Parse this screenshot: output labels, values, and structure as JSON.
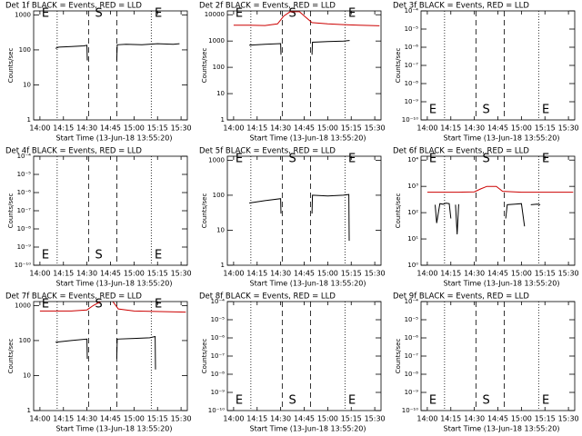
{
  "chart_data": [
    {
      "type": "line",
      "title": "Det 1f BLACK = Events, RED = LLD",
      "xlabel": "Start Time (13-Jun-18 13:55:20)",
      "ylabel": "Counts/sec",
      "log_y": true,
      "labels_at": "top",
      "xlim": [
        -4,
        94
      ],
      "xticks": [
        {
          "value": 0,
          "label": "14:00"
        },
        {
          "value": 15,
          "label": "14:15"
        },
        {
          "value": 30,
          "label": "14:30"
        },
        {
          "value": 45,
          "label": "14:45"
        },
        {
          "value": 60,
          "label": "15:00"
        },
        {
          "value": 75,
          "label": "15:15"
        },
        {
          "value": 90,
          "label": "15:30"
        }
      ],
      "ylim": [
        1,
        1300
      ],
      "yticks": [
        1,
        10,
        100,
        1000
      ],
      "dotted_x": [
        11,
        71
      ],
      "dashed_x": [
        31,
        49
      ],
      "event_labels": [
        {
          "text": "E",
          "x": 0
        },
        {
          "text": "S",
          "x": 34
        },
        {
          "text": "E",
          "x": 72
        }
      ],
      "series": [
        {
          "color": "#000000",
          "x": [
            10,
            12,
            20,
            28,
            30,
            30.2,
            null,
            49,
            49.3,
            55,
            65,
            75,
            85,
            89
          ],
          "values": [
            110,
            120,
            125,
            130,
            135,
            50,
            null,
            50,
            140,
            145,
            140,
            150,
            145,
            150
          ]
        }
      ]
    },
    {
      "type": "line",
      "title": "Det 2f BLACK = Events, RED = LLD",
      "xlabel": "Start Time (13-Jun-18 13:55:20)",
      "ylabel": "Counts/sec",
      "log_y": true,
      "labels_at": "top",
      "xlim": [
        -4,
        94
      ],
      "xticks": [
        {
          "value": 0,
          "label": "14:00"
        },
        {
          "value": 15,
          "label": "14:15"
        },
        {
          "value": 30,
          "label": "14:30"
        },
        {
          "value": 45,
          "label": "14:45"
        },
        {
          "value": 60,
          "label": "15:00"
        },
        {
          "value": 75,
          "label": "15:15"
        },
        {
          "value": 90,
          "label": "15:30"
        }
      ],
      "ylim": [
        1,
        14000
      ],
      "yticks": [
        1,
        10,
        100,
        1000,
        10000
      ],
      "dotted_x": [
        11,
        71
      ],
      "dashed_x": [
        31,
        49
      ],
      "event_labels": [
        {
          "text": "E",
          "x": 0
        },
        {
          "text": "S",
          "x": 34
        },
        {
          "text": "E",
          "x": 72
        }
      ],
      "series": [
        {
          "color": "#cc0000",
          "x": [
            0,
            10,
            20,
            28,
            32,
            36,
            42,
            46,
            50,
            60,
            70,
            80,
            93
          ],
          "values": [
            4000,
            4000,
            3900,
            4500,
            9000,
            13000,
            13000,
            8000,
            5000,
            4500,
            4200,
            4000,
            3800
          ]
        },
        {
          "color": "#000000",
          "x": [
            10,
            20,
            30,
            30.2,
            null,
            50,
            50.3,
            60,
            70,
            74
          ],
          "values": [
            700,
            750,
            800,
            300,
            null,
            300,
            900,
            950,
            1000,
            1050
          ]
        }
      ]
    },
    {
      "type": "line",
      "title": "Det 3f BLACK = Events, RED = LLD",
      "xlabel": "Start Time (13-Jun-18 13:55:20)",
      "ylabel": "Counts/sec",
      "log_y": true,
      "labels_at": "bottom",
      "xlim": [
        -4,
        94
      ],
      "xticks": [
        {
          "value": 0,
          "label": "14:00"
        },
        {
          "value": 15,
          "label": "14:15"
        },
        {
          "value": 30,
          "label": "14:30"
        },
        {
          "value": 45,
          "label": "14:45"
        },
        {
          "value": 60,
          "label": "15:00"
        },
        {
          "value": 75,
          "label": "15:15"
        },
        {
          "value": 90,
          "label": "15:30"
        }
      ],
      "ylim": [
        1e-10,
        0.0001
      ],
      "yticks": [
        {
          "value": 1e-10,
          "label": "10⁻¹⁰"
        },
        {
          "value": 1e-09,
          "label": "10⁻⁹"
        },
        {
          "value": 1e-08,
          "label": "10⁻⁸"
        },
        {
          "value": 1e-07,
          "label": "10⁻⁷"
        },
        {
          "value": 1e-06,
          "label": "10⁻⁶"
        },
        {
          "value": 1e-05,
          "label": "10⁻⁵"
        },
        {
          "value": 0.0001,
          "label": "10⁻⁴"
        }
      ],
      "dotted_x": [
        11,
        71
      ],
      "dashed_x": [
        31,
        49
      ],
      "event_labels": [
        {
          "text": "E",
          "x": 0
        },
        {
          "text": "S",
          "x": 34
        },
        {
          "text": "E",
          "x": 72
        }
      ],
      "series": []
    },
    {
      "type": "line",
      "title": "Det 4f BLACK = Events, RED = LLD",
      "xlabel": "Start Time (13-Jun-18 13:55:20)",
      "ylabel": "Counts/sec",
      "log_y": true,
      "labels_at": "bottom",
      "xlim": [
        -4,
        94
      ],
      "xticks": [
        {
          "value": 0,
          "label": "14:00"
        },
        {
          "value": 15,
          "label": "14:15"
        },
        {
          "value": 30,
          "label": "14:30"
        },
        {
          "value": 45,
          "label": "14:45"
        },
        {
          "value": 60,
          "label": "15:00"
        },
        {
          "value": 75,
          "label": "15:15"
        },
        {
          "value": 90,
          "label": "15:30"
        }
      ],
      "ylim": [
        1e-10,
        0.0001
      ],
      "yticks": [
        {
          "value": 1e-10,
          "label": "10⁻¹⁰"
        },
        {
          "value": 1e-09,
          "label": "10⁻⁹"
        },
        {
          "value": 1e-08,
          "label": "10⁻⁸"
        },
        {
          "value": 1e-07,
          "label": "10⁻⁷"
        },
        {
          "value": 1e-06,
          "label": "10⁻⁶"
        },
        {
          "value": 1e-05,
          "label": "10⁻⁵"
        },
        {
          "value": 0.0001,
          "label": "10⁻⁴"
        }
      ],
      "dotted_x": [
        11,
        71
      ],
      "dashed_x": [
        31,
        49
      ],
      "event_labels": [
        {
          "text": "E",
          "x": 0
        },
        {
          "text": "S",
          "x": 34
        },
        {
          "text": "E",
          "x": 72
        }
      ],
      "series": []
    },
    {
      "type": "line",
      "title": "Det 5f BLACK = Events, RED = LLD",
      "xlabel": "Start Time (13-Jun-18 13:55:20)",
      "ylabel": "Counts/sec",
      "log_y": true,
      "labels_at": "top",
      "xlim": [
        -4,
        94
      ],
      "xticks": [
        {
          "value": 0,
          "label": "14:00"
        },
        {
          "value": 15,
          "label": "14:15"
        },
        {
          "value": 30,
          "label": "14:30"
        },
        {
          "value": 45,
          "label": "14:45"
        },
        {
          "value": 60,
          "label": "15:00"
        },
        {
          "value": 75,
          "label": "15:15"
        },
        {
          "value": 90,
          "label": "15:30"
        }
      ],
      "ylim": [
        1,
        1300
      ],
      "yticks": [
        1,
        10,
        100,
        1000
      ],
      "dotted_x": [
        11,
        71
      ],
      "dashed_x": [
        31,
        49
      ],
      "event_labels": [
        {
          "text": "E",
          "x": 0
        },
        {
          "text": "S",
          "x": 34
        },
        {
          "text": "E",
          "x": 72
        }
      ],
      "series": [
        {
          "color": "#000000",
          "x": [
            10,
            20,
            30,
            30.2,
            null,
            50,
            50.3,
            60,
            70,
            73.5,
            73.7
          ],
          "values": [
            60,
            70,
            80,
            30,
            null,
            30,
            100,
            95,
            100,
            105,
            5
          ]
        }
      ]
    },
    {
      "type": "line",
      "title": "Det 6f BLACK = Events, RED = LLD",
      "xlabel": "Start Time (13-Jun-18 13:55:20)",
      "ylabel": "Counts/sec",
      "log_y": true,
      "labels_at": "top",
      "xlim": [
        -4,
        94
      ],
      "xticks": [
        {
          "value": 0,
          "label": "14:00"
        },
        {
          "value": 15,
          "label": "14:15"
        },
        {
          "value": 30,
          "label": "14:30"
        },
        {
          "value": 45,
          "label": "14:45"
        },
        {
          "value": 60,
          "label": "15:00"
        },
        {
          "value": 75,
          "label": "15:15"
        },
        {
          "value": 90,
          "label": "15:30"
        }
      ],
      "ylim": [
        1,
        14000
      ],
      "yticks": [
        {
          "value": 1,
          "label": "10⁰"
        },
        {
          "value": 10,
          "label": "10¹"
        },
        {
          "value": 100,
          "label": "10²"
        },
        {
          "value": 1000,
          "label": "10³"
        },
        {
          "value": 10000,
          "label": "10⁴"
        }
      ],
      "dotted_x": [
        11,
        71
      ],
      "dashed_x": [
        31,
        49
      ],
      "event_labels": [
        {
          "text": "E",
          "x": 0
        },
        {
          "text": "S",
          "x": 34
        },
        {
          "text": "E",
          "x": 72
        }
      ],
      "series": [
        {
          "color": "#cc0000",
          "x": [
            0,
            20,
            30,
            34,
            38,
            44,
            48,
            60,
            93
          ],
          "values": [
            600,
            600,
            620,
            800,
            1000,
            1000,
            650,
            600,
            600
          ]
        },
        {
          "color": "#000000",
          "x": [
            5,
            6,
            8,
            10,
            12,
            14,
            15,
            null,
            18,
            19,
            20,
            null,
            50,
            51,
            56,
            60,
            62,
            null,
            66,
            70,
            72
          ],
          "values": [
            200,
            40,
            220,
            210,
            230,
            220,
            60,
            null,
            200,
            15,
            210,
            null,
            60,
            200,
            210,
            220,
            30,
            null,
            200,
            210,
            200
          ]
        }
      ]
    },
    {
      "type": "line",
      "title": "Det 7f BLACK = Events, RED = LLD",
      "xlabel": "Start Time (13-Jun-18 13:55:20)",
      "ylabel": "Counts/sec",
      "log_y": true,
      "labels_at": "top",
      "xlim": [
        -4,
        94
      ],
      "xticks": [
        {
          "value": 0,
          "label": "14:00"
        },
        {
          "value": 15,
          "label": "14:15"
        },
        {
          "value": 30,
          "label": "14:30"
        },
        {
          "value": 45,
          "label": "14:45"
        },
        {
          "value": 60,
          "label": "15:00"
        },
        {
          "value": 75,
          "label": "15:15"
        },
        {
          "value": 90,
          "label": "15:30"
        }
      ],
      "ylim": [
        1,
        1300
      ],
      "yticks": [
        1,
        10,
        100,
        1000
      ],
      "dotted_x": [
        11,
        71
      ],
      "dashed_x": [
        31,
        49
      ],
      "event_labels": [
        {
          "text": "E",
          "x": 0
        },
        {
          "text": "S",
          "x": 34
        },
        {
          "text": "E",
          "x": 72
        }
      ],
      "series": [
        {
          "color": "#cc0000",
          "x": [
            0,
            20,
            30,
            34,
            40,
            46,
            50,
            60,
            93
          ],
          "values": [
            700,
            700,
            750,
            1000,
            1400,
            1400,
            800,
            700,
            650
          ]
        },
        {
          "color": "#000000",
          "x": [
            10,
            20,
            30,
            30.2,
            null,
            49,
            49.3,
            60,
            70,
            73.5,
            73.7
          ],
          "values": [
            90,
            100,
            110,
            30,
            null,
            30,
            110,
            115,
            120,
            130,
            15
          ]
        }
      ]
    },
    {
      "type": "line",
      "title": "Det 8f BLACK = Events, RED = LLD",
      "xlabel": "Start Time (13-Jun-18 13:55:20)",
      "ylabel": "Counts/sec",
      "log_y": true,
      "labels_at": "bottom",
      "xlim": [
        -4,
        94
      ],
      "xticks": [
        {
          "value": 0,
          "label": "14:00"
        },
        {
          "value": 15,
          "label": "14:15"
        },
        {
          "value": 30,
          "label": "14:30"
        },
        {
          "value": 45,
          "label": "14:45"
        },
        {
          "value": 60,
          "label": "15:00"
        },
        {
          "value": 75,
          "label": "15:15"
        },
        {
          "value": 90,
          "label": "15:30"
        }
      ],
      "ylim": [
        1e-10,
        0.0001
      ],
      "yticks": [
        {
          "value": 1e-10,
          "label": "10⁻¹⁰"
        },
        {
          "value": 1e-09,
          "label": "10⁻⁹"
        },
        {
          "value": 1e-08,
          "label": "10⁻⁸"
        },
        {
          "value": 1e-07,
          "label": "10⁻⁷"
        },
        {
          "value": 1e-06,
          "label": "10⁻⁶"
        },
        {
          "value": 1e-05,
          "label": "10⁻⁵"
        },
        {
          "value": 0.0001,
          "label": "10⁻⁴"
        }
      ],
      "dotted_x": [
        11,
        71
      ],
      "dashed_x": [
        31,
        49
      ],
      "event_labels": [
        {
          "text": "E",
          "x": 0
        },
        {
          "text": "S",
          "x": 34
        },
        {
          "text": "E",
          "x": 72
        }
      ],
      "series": []
    },
    {
      "type": "line",
      "title": "Det 9f BLACK = Events, RED = LLD",
      "xlabel": "Start Time (13-Jun-18 13:55:20)",
      "ylabel": "Counts/sec",
      "log_y": true,
      "labels_at": "bottom",
      "xlim": [
        -4,
        94
      ],
      "xticks": [
        {
          "value": 0,
          "label": "14:00"
        },
        {
          "value": 15,
          "label": "14:15"
        },
        {
          "value": 30,
          "label": "14:30"
        },
        {
          "value": 45,
          "label": "14:45"
        },
        {
          "value": 60,
          "label": "15:00"
        },
        {
          "value": 75,
          "label": "15:15"
        },
        {
          "value": 90,
          "label": "15:30"
        }
      ],
      "ylim": [
        1e-10,
        0.0001
      ],
      "yticks": [
        {
          "value": 1e-10,
          "label": "10⁻¹⁰"
        },
        {
          "value": 1e-09,
          "label": "10⁻⁹"
        },
        {
          "value": 1e-08,
          "label": "10⁻⁸"
        },
        {
          "value": 1e-07,
          "label": "10⁻⁷"
        },
        {
          "value": 1e-06,
          "label": "10⁻⁶"
        },
        {
          "value": 1e-05,
          "label": "10⁻⁵"
        },
        {
          "value": 0.0001,
          "label": "10⁻⁴"
        }
      ],
      "dotted_x": [
        11,
        71
      ],
      "dashed_x": [
        31,
        49
      ],
      "event_labels": [
        {
          "text": "E",
          "x": 0
        },
        {
          "text": "S",
          "x": 34
        },
        {
          "text": "E",
          "x": 72
        }
      ],
      "series": []
    }
  ]
}
